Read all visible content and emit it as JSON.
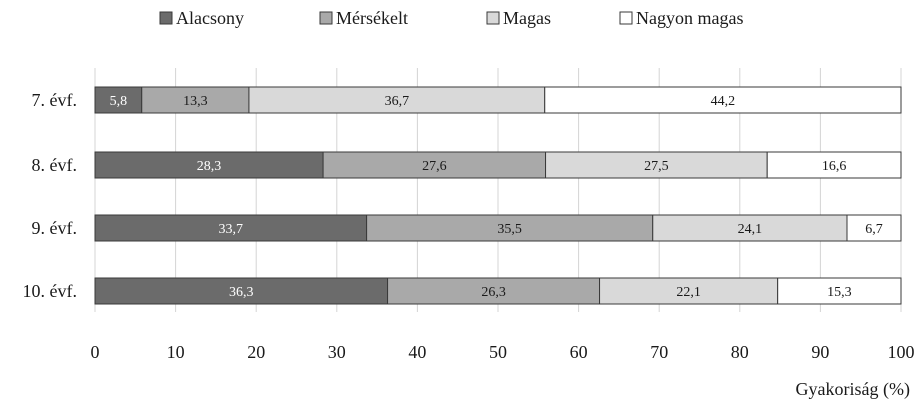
{
  "chart_data": {
    "type": "bar",
    "orientation": "horizontal",
    "stacked": true,
    "categories": [
      "7. évf.",
      "8. évf.",
      "9. évf.",
      "10. évf."
    ],
    "series": [
      {
        "name": "Alacsony",
        "values": [
          5.8,
          28.3,
          33.7,
          36.3
        ],
        "value_labels": [
          "5,8",
          "28,3",
          "33,7",
          "36,3"
        ],
        "color": "#6b6b6b",
        "label_color": "#ffffff"
      },
      {
        "name": "Mérsékelt",
        "values": [
          13.3,
          27.6,
          35.5,
          26.3
        ],
        "value_labels": [
          "13,3",
          "27,6",
          "35,5",
          "26,3"
        ],
        "color": "#a9a9a9",
        "label_color": "#1a1a1a"
      },
      {
        "name": "Magas",
        "values": [
          36.7,
          27.5,
          24.1,
          22.1
        ],
        "value_labels": [
          "36,7",
          "27,5",
          "24,1",
          "22,1"
        ],
        "color": "#d9d9d9",
        "label_color": "#1a1a1a"
      },
      {
        "name": "Nagyon magas",
        "values": [
          44.2,
          16.6,
          6.7,
          15.3
        ],
        "value_labels": [
          "44,2",
          "16,6",
          "6,7",
          "15,3"
        ],
        "color": "#ffffff",
        "label_color": "#1a1a1a"
      }
    ],
    "xlabel": "Gyakoriság (%)",
    "ylabel": "",
    "xlim": [
      0,
      100
    ],
    "xticks": [
      0,
      10,
      20,
      30,
      40,
      50,
      60,
      70,
      80,
      90,
      100
    ],
    "grid": true,
    "legend_position": "top"
  }
}
